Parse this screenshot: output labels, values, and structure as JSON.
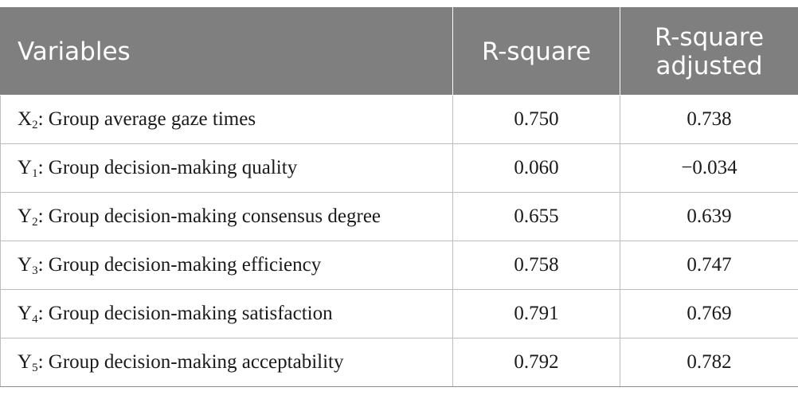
{
  "table": {
    "headers": {
      "variables": "Variables",
      "r_square": "R-square",
      "r_square_adjusted_line1": "R-square",
      "r_square_adjusted_line2": "adjusted"
    },
    "rows": [
      {
        "symbol": "X",
        "index": "2",
        "label": ": Group average gaze times",
        "r_square": "0.750",
        "r_square_adjusted": "0.738"
      },
      {
        "symbol": "Y",
        "index": "1",
        "label": ": Group decision-making quality",
        "r_square": "0.060",
        "r_square_adjusted": "−0.034"
      },
      {
        "symbol": "Y",
        "index": "2",
        "label": ": Group decision-making consensus degree",
        "r_square": "0.655",
        "r_square_adjusted": "0.639"
      },
      {
        "symbol": "Y",
        "index": "3",
        "label": ": Group decision-making efficiency",
        "r_square": "0.758",
        "r_square_adjusted": "0.747"
      },
      {
        "symbol": "Y",
        "index": "4",
        "label": ": Group decision-making satisfaction",
        "r_square": "0.791",
        "r_square_adjusted": "0.769"
      },
      {
        "symbol": "Y",
        "index": "5",
        "label": ": Group decision-making acceptability",
        "r_square": "0.792",
        "r_square_adjusted": "0.782"
      }
    ]
  },
  "colors": {
    "header_background": "#7f7f7f",
    "header_text": "#ffffff",
    "cell_border": "#bdbdbd",
    "body_text": "#1a1a1a"
  }
}
